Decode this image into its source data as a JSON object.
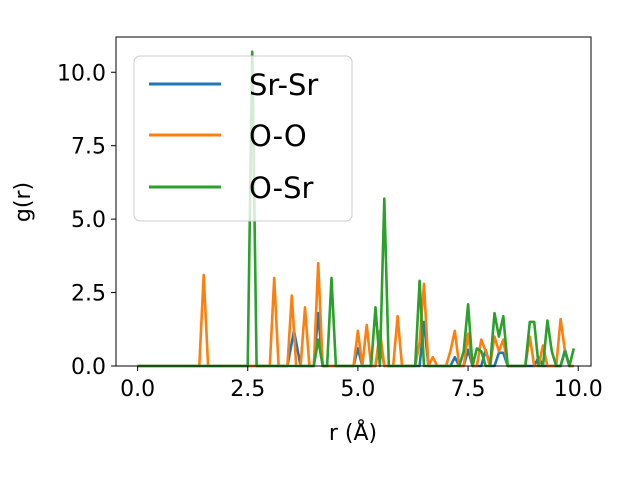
{
  "chart_data": {
    "type": "line",
    "xlabel": "r (Å)",
    "ylabel": "g(r)",
    "xlim": [
      -0.49,
      10.29
    ],
    "ylim": [
      0,
      11.2
    ],
    "xticks": [
      0.0,
      2.5,
      5.0,
      7.5,
      10.0
    ],
    "xtick_labels": [
      "0.0",
      "2.5",
      "5.0",
      "7.5",
      "10.0"
    ],
    "yticks": [
      0.0,
      2.5,
      5.0,
      7.5,
      10.0
    ],
    "ytick_labels": [
      "0.0",
      "2.5",
      "5.0",
      "7.5",
      "10.0"
    ],
    "grid": false,
    "legend_position": "upper-left",
    "series": [
      {
        "name": "Sr-Sr",
        "color": "#1f77b4",
        "x": [
          0.0,
          3.4,
          3.55,
          3.7,
          4.0,
          4.1,
          4.2,
          4.9,
          5.0,
          5.1,
          5.4,
          5.5,
          5.6,
          6.0,
          6.4,
          6.5,
          6.6,
          7.1,
          7.2,
          7.3,
          7.4,
          7.5,
          7.6,
          7.8,
          7.9,
          8.0,
          8.1,
          8.2,
          8.3,
          8.4,
          9.0,
          9.1,
          9.2,
          9.3,
          9.6,
          9.7,
          9.8,
          9.9
        ],
        "y": [
          0.0,
          0.0,
          1.2,
          0.0,
          0.0,
          1.8,
          0.0,
          0.0,
          0.6,
          0.0,
          0.0,
          0.9,
          0.0,
          0.0,
          0.0,
          1.5,
          0.0,
          0.0,
          0.3,
          0.0,
          0.0,
          0.55,
          0.0,
          0.0,
          0.55,
          0.0,
          0.0,
          0.45,
          0.45,
          0.0,
          0.0,
          0.3,
          0.0,
          0.0,
          0.0,
          0.55,
          0.0,
          0.0
        ]
      },
      {
        "name": "O-O",
        "color": "#ff7f0e",
        "x": [
          0.0,
          1.4,
          1.5,
          1.6,
          3.0,
          3.1,
          3.2,
          3.4,
          3.5,
          3.6,
          3.7,
          3.8,
          3.9,
          4.0,
          4.1,
          4.2,
          4.9,
          5.0,
          5.1,
          5.2,
          5.3,
          5.4,
          5.5,
          5.6,
          5.8,
          5.9,
          6.0,
          6.3,
          6.4,
          6.5,
          6.6,
          6.7,
          6.8,
          7.0,
          7.1,
          7.2,
          7.3,
          7.4,
          7.5,
          7.6,
          7.7,
          7.8,
          7.9,
          8.0,
          8.1,
          8.2,
          8.3,
          8.4,
          8.8,
          8.9,
          9.0,
          9.1,
          9.2,
          9.3,
          9.4,
          9.5,
          9.6,
          9.7,
          9.8,
          9.9
        ],
        "y": [
          0.0,
          0.0,
          3.1,
          0.0,
          0.0,
          3.0,
          0.0,
          0.0,
          2.4,
          0.0,
          0.0,
          2.0,
          0.0,
          0.0,
          3.5,
          0.0,
          0.0,
          1.2,
          0.0,
          1.4,
          0.0,
          0.0,
          1.2,
          0.0,
          0.0,
          1.7,
          0.0,
          0.0,
          0.8,
          2.8,
          0.0,
          0.3,
          0.0,
          0.0,
          0.5,
          1.2,
          0.0,
          0.0,
          1.1,
          0.0,
          0.0,
          0.9,
          0.5,
          0.0,
          1.0,
          0.5,
          0.9,
          0.0,
          0.0,
          1.0,
          0.0,
          0.0,
          0.7,
          0.0,
          0.0,
          0.0,
          1.6,
          0.5,
          0.0,
          0.0
        ]
      },
      {
        "name": "O-Sr",
        "color": "#2ca02c",
        "x": [
          0.0,
          2.5,
          2.6,
          2.7,
          4.0,
          4.1,
          4.2,
          4.3,
          4.4,
          4.5,
          5.3,
          5.4,
          5.5,
          5.6,
          5.7,
          6.3,
          6.4,
          6.5,
          7.3,
          7.4,
          7.5,
          7.6,
          7.7,
          7.8,
          7.9,
          8.0,
          8.1,
          8.2,
          8.3,
          8.4,
          8.8,
          8.9,
          9.0,
          9.1,
          9.2,
          9.3,
          9.4,
          9.5,
          9.6,
          9.7,
          9.8,
          9.9
        ],
        "y": [
          0.0,
          0.0,
          10.7,
          0.0,
          0.0,
          0.9,
          0.0,
          0.0,
          3.0,
          0.0,
          0.0,
          2.0,
          0.0,
          5.7,
          0.0,
          0.0,
          2.9,
          0.0,
          0.0,
          0.5,
          2.1,
          0.0,
          0.6,
          0.5,
          0.0,
          0.0,
          1.8,
          1.0,
          1.7,
          0.0,
          0.0,
          1.5,
          1.5,
          0.0,
          0.0,
          1.55,
          0.5,
          0.0,
          0.0,
          0.5,
          0.0,
          0.6
        ]
      }
    ]
  }
}
